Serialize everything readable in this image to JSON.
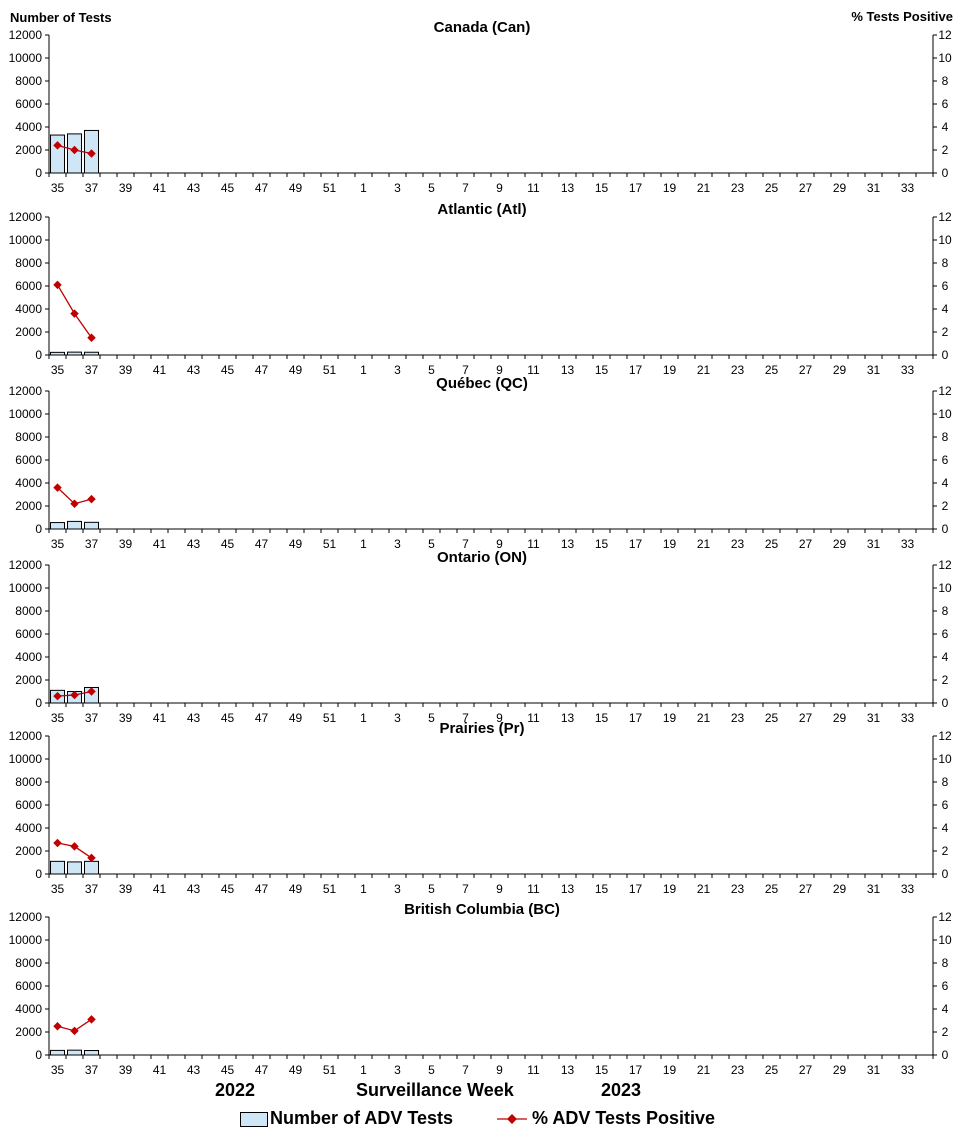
{
  "header": {
    "left_axis_title": "Number of Tests",
    "right_axis_title": "%  Tests Positive"
  },
  "footer": {
    "year_left": "2022",
    "xlabel": "Surveillance Week",
    "year_right": "2023"
  },
  "legend": {
    "bars_label": "Number of ADV Tests",
    "line_label": "% ADV Tests Positive"
  },
  "colors": {
    "bar_fill": "#cfe6f7",
    "bar_stroke": "#000000",
    "line": "#c00000"
  },
  "chart_data": [
    {
      "type": "bar",
      "title": "Canada (Can)",
      "x": [
        "35",
        "36",
        "37"
      ],
      "series": [
        {
          "name": "Number of ADV Tests",
          "axis": "left",
          "values": [
            3300,
            3400,
            3700
          ]
        },
        {
          "name": "% ADV Tests Positive",
          "axis": "right",
          "type": "line",
          "values": [
            2.4,
            2.0,
            1.7
          ]
        }
      ],
      "ylim": [
        0,
        12000
      ],
      "y2lim": [
        0,
        12
      ]
    },
    {
      "type": "bar",
      "title": "Atlantic (Atl)",
      "x": [
        "35",
        "36",
        "37"
      ],
      "series": [
        {
          "name": "Number of ADV Tests",
          "axis": "left",
          "values": [
            230,
            250,
            240
          ]
        },
        {
          "name": "% ADV Tests Positive",
          "axis": "right",
          "type": "line",
          "values": [
            6.1,
            3.6,
            1.5
          ]
        }
      ],
      "ylim": [
        0,
        12000
      ],
      "y2lim": [
        0,
        12
      ]
    },
    {
      "type": "bar",
      "title": "Québec (QC)",
      "x": [
        "35",
        "36",
        "37"
      ],
      "series": [
        {
          "name": "Number of ADV Tests",
          "axis": "left",
          "values": [
            560,
            660,
            580
          ]
        },
        {
          "name": "% ADV Tests Positive",
          "axis": "right",
          "type": "line",
          "values": [
            3.6,
            2.2,
            2.6
          ]
        }
      ],
      "ylim": [
        0,
        12000
      ],
      "y2lim": [
        0,
        12
      ]
    },
    {
      "type": "bar",
      "title": "Ontario (ON)",
      "x": [
        "35",
        "36",
        "37"
      ],
      "series": [
        {
          "name": "Number of ADV Tests",
          "axis": "left",
          "values": [
            1100,
            1000,
            1350
          ]
        },
        {
          "name": "% ADV Tests Positive",
          "axis": "right",
          "type": "line",
          "values": [
            0.6,
            0.7,
            1.0
          ]
        }
      ],
      "ylim": [
        0,
        12000
      ],
      "y2lim": [
        0,
        12
      ]
    },
    {
      "type": "bar",
      "title": "Prairies (Pr)",
      "x": [
        "35",
        "36",
        "37"
      ],
      "series": [
        {
          "name": "Number of ADV Tests",
          "axis": "left",
          "values": [
            1100,
            1050,
            1100
          ]
        },
        {
          "name": "% ADV Tests Positive",
          "axis": "right",
          "type": "line",
          "values": [
            2.7,
            2.4,
            1.4
          ]
        }
      ],
      "ylim": [
        0,
        12000
      ],
      "y2lim": [
        0,
        12
      ]
    },
    {
      "type": "bar",
      "title": "British Columbia (BC)",
      "x": [
        "35",
        "36",
        "37"
      ],
      "series": [
        {
          "name": "Number of ADV Tests",
          "axis": "left",
          "values": [
            400,
            420,
            390
          ]
        },
        {
          "name": "% ADV Tests Positive",
          "axis": "right",
          "type": "line",
          "values": [
            2.5,
            2.1,
            3.1
          ]
        }
      ],
      "ylim": [
        0,
        12000
      ],
      "y2lim": [
        0,
        12
      ]
    }
  ],
  "axes": {
    "left_ticks": [
      "0",
      "2000",
      "4000",
      "6000",
      "8000",
      "10000",
      "12000"
    ],
    "right_ticks": [
      "0",
      "2",
      "4",
      "6",
      "8",
      "10",
      "12"
    ],
    "week_labels": [
      "35",
      "37",
      "39",
      "41",
      "43",
      "45",
      "47",
      "49",
      "51",
      "1",
      "3",
      "5",
      "7",
      "9",
      "11",
      "13",
      "15",
      "17",
      "19",
      "21",
      "23",
      "25",
      "27",
      "29",
      "31",
      "33"
    ]
  }
}
